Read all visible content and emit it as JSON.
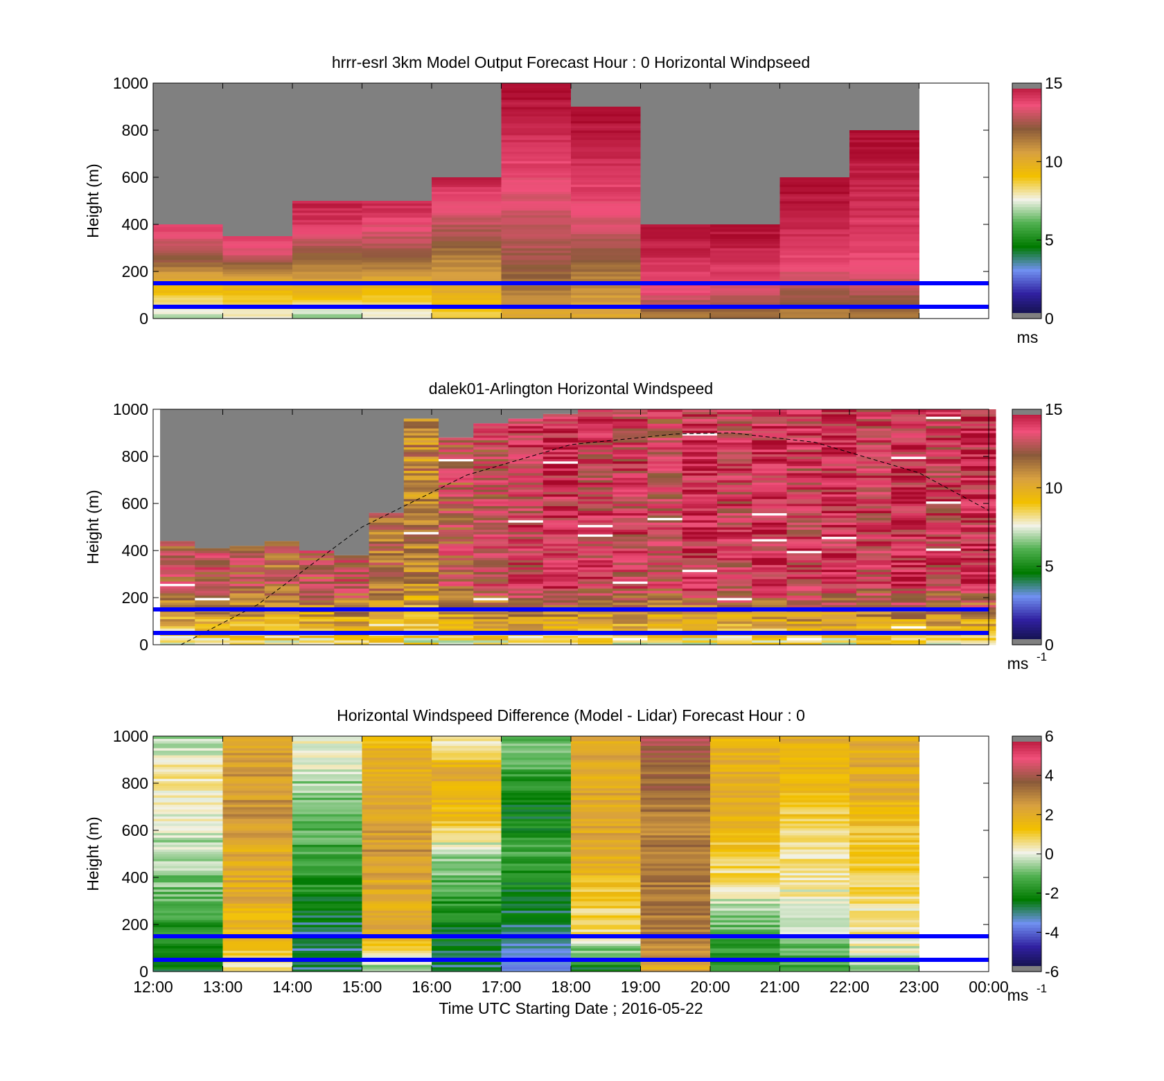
{
  "figure": {
    "xlabel": "Time UTC  Starting Date ; 2016-05-22",
    "x_tick_labels": [
      "12:00",
      "13:00",
      "14:00",
      "15:00",
      "16:00",
      "17:00",
      "18:00",
      "19:00",
      "20:00",
      "21:00",
      "22:00",
      "23:00",
      "00:00"
    ],
    "y_tick_labels": [
      "0",
      "200",
      "400",
      "600",
      "800",
      "1000"
    ]
  },
  "colors": {
    "missing": "#808080",
    "overlay_lines": "#0000ff",
    "colormap": [
      "#101040",
      "#3020a0",
      "#7090f0",
      "#007a00",
      "#50b050",
      "#f2f2e8",
      "#f2c000",
      "#d8a040",
      "#8a5a3a",
      "#f0507a",
      "#a8082a"
    ]
  },
  "chart_data": [
    {
      "type": "heatmap",
      "title": "hrrr-esrl 3km Model Output   Forecast Hour : 0 Horizontal Windpseed",
      "ylabel": "Height (m)",
      "xlim": [
        12,
        24
      ],
      "ylim": [
        0,
        1000
      ],
      "colorbar": {
        "min": 0,
        "max": 15,
        "ticks": [
          "0",
          "5",
          "10",
          "15"
        ],
        "label": "ms",
        "label_sup": ""
      },
      "reference_lines_m": [
        150,
        50
      ],
      "columns": [
        {
          "t": 12,
          "top_m": 400,
          "speed_profile": [
            7,
            8.5,
            10,
            12,
            13,
            14
          ]
        },
        {
          "t": 13,
          "top_m": 350,
          "speed_profile": [
            7.5,
            9,
            10.5,
            13,
            14
          ]
        },
        {
          "t": 14,
          "top_m": 500,
          "speed_profile": [
            6.5,
            9.5,
            11,
            12.5,
            14,
            14.5
          ]
        },
        {
          "t": 15,
          "top_m": 500,
          "speed_profile": [
            7.5,
            9,
            11,
            12.5,
            13.5,
            14.5
          ]
        },
        {
          "t": 16,
          "top_m": 600,
          "speed_profile": [
            8.5,
            10,
            11,
            12.5,
            13.5,
            14.5
          ]
        },
        {
          "t": 17,
          "top_m": 1000,
          "speed_profile": [
            10,
            11.5,
            12.5,
            13,
            13.5,
            14,
            14.5,
            15
          ]
        },
        {
          "t": 18,
          "top_m": 900,
          "speed_profile": [
            10,
            11,
            12.5,
            13.5,
            14,
            14.5,
            15
          ]
        },
        {
          "t": 19,
          "top_m": 400,
          "speed_profile": [
            11,
            13.5,
            14,
            14.5,
            15
          ]
        },
        {
          "t": 20,
          "top_m": 400,
          "speed_profile": [
            11.5,
            13,
            14,
            14.5,
            15
          ]
        },
        {
          "t": 21,
          "top_m": 600,
          "speed_profile": [
            11,
            13,
            14,
            14.5,
            15
          ]
        },
        {
          "t": 22,
          "top_m": 800,
          "speed_profile": [
            11.5,
            13.5,
            14,
            14.5,
            15
          ]
        }
      ]
    },
    {
      "type": "heatmap",
      "title": "dalek01-Arlington  Horizontal Windspeed",
      "ylabel": "Height (m)",
      "xlim": [
        12,
        24
      ],
      "ylim": [
        0,
        1000
      ],
      "colorbar": {
        "min": 0,
        "max": 15,
        "ticks": [
          "0",
          "5",
          "10",
          "15"
        ],
        "label": "ms",
        "label_sup": "-1"
      },
      "reference_lines_m": [
        150,
        50
      ],
      "curve": {
        "style": "dashed",
        "x": [
          12.4,
          13.5,
          15,
          16.5,
          18,
          19.5,
          20.3,
          21.5,
          23,
          24
        ],
        "y": [
          0,
          170,
          500,
          720,
          850,
          895,
          900,
          860,
          730,
          570
        ]
      },
      "columns": [
        {
          "t": 12.1,
          "top_m": 440,
          "base_speed": 12.5
        },
        {
          "t": 12.6,
          "top_m": 410,
          "base_speed": 13
        },
        {
          "t": 13.1,
          "top_m": 420,
          "base_speed": 12.5
        },
        {
          "t": 13.6,
          "top_m": 440,
          "base_speed": 12
        },
        {
          "t": 14.1,
          "top_m": 400,
          "base_speed": 12.5
        },
        {
          "t": 14.6,
          "top_m": 380,
          "base_speed": 13
        },
        {
          "t": 15.1,
          "top_m": 560,
          "base_speed": 11.5
        },
        {
          "t": 15.6,
          "top_m": 960,
          "base_speed": 11
        },
        {
          "t": 16.1,
          "top_m": 880,
          "base_speed": 12.5
        },
        {
          "t": 16.6,
          "top_m": 940,
          "base_speed": 13
        },
        {
          "t": 17.1,
          "top_m": 960,
          "base_speed": 13.5
        },
        {
          "t": 17.6,
          "top_m": 980,
          "base_speed": 14
        },
        {
          "t": 18.1,
          "top_m": 1000,
          "base_speed": 13.5
        },
        {
          "t": 18.6,
          "top_m": 1000,
          "base_speed": 13.5
        },
        {
          "t": 19.1,
          "top_m": 1000,
          "base_speed": 13
        },
        {
          "t": 19.6,
          "top_m": 1000,
          "base_speed": 14
        },
        {
          "t": 20.1,
          "top_m": 1000,
          "base_speed": 13.5
        },
        {
          "t": 20.6,
          "top_m": 1000,
          "base_speed": 14
        },
        {
          "t": 21.1,
          "top_m": 1000,
          "base_speed": 13.5
        },
        {
          "t": 21.6,
          "top_m": 1000,
          "base_speed": 14
        },
        {
          "t": 22.1,
          "top_m": 1000,
          "base_speed": 13.5
        },
        {
          "t": 22.6,
          "top_m": 1000,
          "base_speed": 14
        },
        {
          "t": 23.1,
          "top_m": 1000,
          "base_speed": 13.5
        },
        {
          "t": 23.6,
          "top_m": 1000,
          "base_speed": 14
        }
      ]
    },
    {
      "type": "heatmap",
      "title": "Horizontal Windspeed Difference (Model - Lidar) Forecast Hour : 0",
      "ylabel": "Height (m)",
      "xlim": [
        12,
        24
      ],
      "ylim": [
        0,
        1000
      ],
      "colorbar": {
        "min": -6,
        "max": 6,
        "ticks": [
          "-6",
          "-4",
          "-2",
          "0",
          "2",
          "4",
          "6"
        ],
        "label": "ms",
        "label_sup": "-1"
      },
      "reference_lines_m": [
        150,
        50
      ],
      "columns": [
        {
          "t": 12,
          "diff_profile": [
            -2.5,
            -2,
            -1,
            -0.5,
            0,
            0.5,
            -0.5
          ]
        },
        {
          "t": 13,
          "diff_profile": [
            0.5,
            1.5,
            2,
            2,
            2.5,
            2.5,
            2
          ]
        },
        {
          "t": 14,
          "diff_profile": [
            -3,
            -3,
            -2,
            -1.5,
            -1,
            -0.5,
            0.2
          ]
        },
        {
          "t": 15,
          "diff_profile": [
            -1,
            2,
            2,
            2.5,
            2,
            2,
            1.5
          ]
        },
        {
          "t": 16,
          "diff_profile": [
            -3,
            -2.5,
            -1.5,
            -0.5,
            1.5,
            2,
            0
          ]
        },
        {
          "t": 17,
          "diff_profile": [
            -3.5,
            -3,
            -2.5,
            -1.5,
            -2.5,
            -1.5,
            -1
          ]
        },
        {
          "t": 18,
          "diff_profile": [
            -2.5,
            0.5,
            1,
            2,
            2,
            2,
            2
          ]
        },
        {
          "t": 19,
          "diff_profile": [
            2,
            3,
            3,
            3,
            3,
            3.5,
            4
          ]
        },
        {
          "t": 20,
          "diff_profile": [
            -2,
            -1,
            0.5,
            1.5,
            2,
            1.5
          ]
        },
        {
          "t": 21,
          "diff_profile": [
            -1.5,
            -0.5,
            0.2,
            0.5,
            1,
            1.5,
            2
          ]
        },
        {
          "t": 22,
          "diff_profile": [
            -0.5,
            0.3,
            0.5,
            1,
            1.5,
            2,
            2
          ]
        }
      ]
    }
  ]
}
